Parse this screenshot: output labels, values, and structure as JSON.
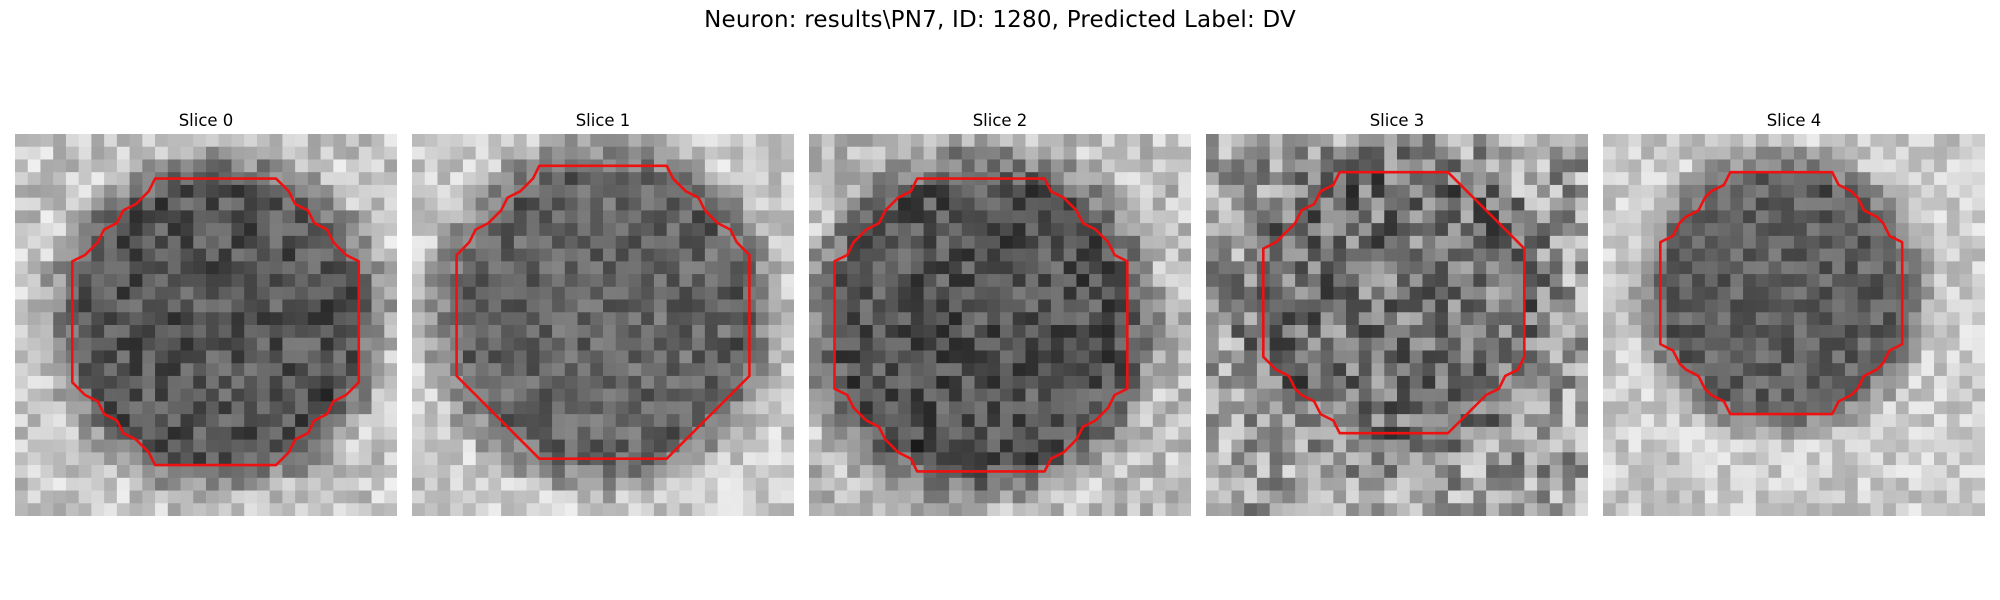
{
  "figure": {
    "title": "Neuron: results\\PN7, ID: 1280, Predicted Label: DV"
  },
  "contour_color": "#ee1111",
  "panels": [
    {
      "title": "Slice 0"
    },
    {
      "title": "Slice 1"
    },
    {
      "title": "Slice 2"
    },
    {
      "title": "Slice 3"
    },
    {
      "title": "Slice 4"
    }
  ]
}
